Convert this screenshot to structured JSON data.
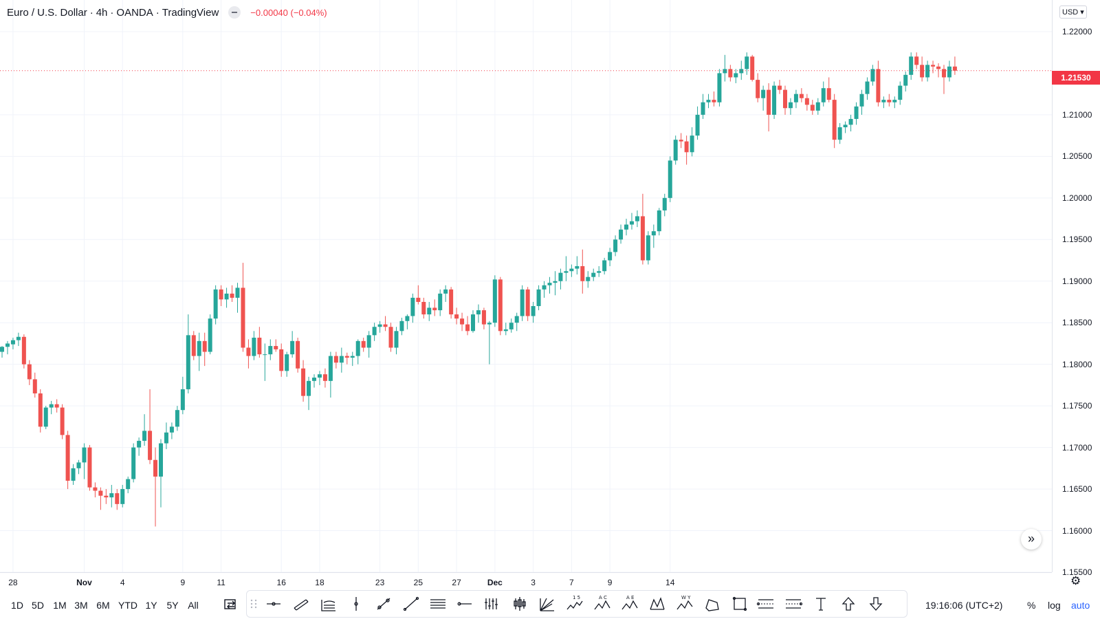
{
  "legend": {
    "symbol_name": "Euro / U.S. Dollar",
    "interval": "4h",
    "exchange": "OANDA",
    "publisher": "TradingView",
    "change": "−0.00040 (−0.04%)"
  },
  "currency_select": "USD",
  "last_price_label": "1.21530",
  "price_scale": {
    "ticks": [
      "1.22000",
      "1.21000",
      "1.20500",
      "1.20000",
      "1.19500",
      "1.19000",
      "1.18500",
      "1.18000",
      "1.17500",
      "1.17000",
      "1.16500",
      "1.16000",
      "1.15500"
    ],
    "tick_values": [
      1.22,
      1.21,
      1.205,
      1.2,
      1.195,
      1.19,
      1.185,
      1.18,
      1.175,
      1.17,
      1.165,
      1.16,
      1.155
    ]
  },
  "time_scale": {
    "labels": [
      {
        "text": "28",
        "index": 2
      },
      {
        "text": "Nov",
        "index": 15,
        "bold": true
      },
      {
        "text": "4",
        "index": 22
      },
      {
        "text": "9",
        "index": 33
      },
      {
        "text": "11",
        "index": 40
      },
      {
        "text": "16",
        "index": 51
      },
      {
        "text": "18",
        "index": 58
      },
      {
        "text": "23",
        "index": 69
      },
      {
        "text": "25",
        "index": 76
      },
      {
        "text": "27",
        "index": 83
      },
      {
        "text": "Dec",
        "index": 90,
        "bold": true
      },
      {
        "text": "3",
        "index": 97
      },
      {
        "text": "7",
        "index": 104
      },
      {
        "text": "9",
        "index": 111
      },
      {
        "text": "14",
        "index": 122
      }
    ]
  },
  "chart_data": {
    "type": "candlestick",
    "symbol": "Euro / U.S. Dollar",
    "interval": "4h",
    "ylim": [
      1.155,
      1.2238
    ],
    "grid": true,
    "up_color": "#26a69a",
    "down_color": "#ef5350",
    "ohlc": [
      [
        1.1815,
        1.1822,
        1.1808,
        1.1821
      ],
      [
        1.1821,
        1.1828,
        1.1812,
        1.1825
      ],
      [
        1.1824,
        1.1832,
        1.1818,
        1.1829
      ],
      [
        1.1829,
        1.1838,
        1.1822,
        1.1833
      ],
      [
        1.1833,
        1.1836,
        1.1795,
        1.18
      ],
      [
        1.18,
        1.1805,
        1.1775,
        1.1782
      ],
      [
        1.1782,
        1.179,
        1.176,
        1.1765
      ],
      [
        1.1765,
        1.177,
        1.1718,
        1.1725
      ],
      [
        1.1725,
        1.175,
        1.1722,
        1.1748
      ],
      [
        1.1748,
        1.1756,
        1.174,
        1.1752
      ],
      [
        1.1752,
        1.1758,
        1.1742,
        1.1748
      ],
      [
        1.1748,
        1.1752,
        1.171,
        1.1715
      ],
      [
        1.1715,
        1.172,
        1.165,
        1.166
      ],
      [
        1.166,
        1.168,
        1.1655,
        1.1675
      ],
      [
        1.1675,
        1.1685,
        1.1668,
        1.1682
      ],
      [
        1.1682,
        1.1705,
        1.1662,
        1.17
      ],
      [
        1.17,
        1.1703,
        1.1648,
        1.1652
      ],
      [
        1.1652,
        1.1658,
        1.164,
        1.1648
      ],
      [
        1.1648,
        1.1652,
        1.1625,
        1.1642
      ],
      [
        1.1642,
        1.165,
        1.1632,
        1.164
      ],
      [
        1.164,
        1.1655,
        1.1628,
        1.1645
      ],
      [
        1.1645,
        1.165,
        1.1625,
        1.1632
      ],
      [
        1.1632,
        1.1655,
        1.1628,
        1.165
      ],
      [
        1.165,
        1.1665,
        1.1645,
        1.1662
      ],
      [
        1.1662,
        1.1705,
        1.1658,
        1.17
      ],
      [
        1.17,
        1.1712,
        1.169,
        1.1708
      ],
      [
        1.1708,
        1.174,
        1.1702,
        1.172
      ],
      [
        1.172,
        1.177,
        1.168,
        1.1685
      ],
      [
        1.1685,
        1.17,
        1.1605,
        1.1665
      ],
      [
        1.1665,
        1.171,
        1.1628,
        1.1705
      ],
      [
        1.1705,
        1.173,
        1.1698,
        1.1718
      ],
      [
        1.1718,
        1.173,
        1.171,
        1.1725
      ],
      [
        1.1725,
        1.175,
        1.172,
        1.1745
      ],
      [
        1.1745,
        1.1785,
        1.174,
        1.177
      ],
      [
        1.177,
        1.186,
        1.1765,
        1.1835
      ],
      [
        1.1835,
        1.184,
        1.1805,
        1.181
      ],
      [
        1.181,
        1.1838,
        1.1792,
        1.1828
      ],
      [
        1.1828,
        1.1838,
        1.1798,
        1.1815
      ],
      [
        1.1815,
        1.186,
        1.1812,
        1.1855
      ],
      [
        1.1855,
        1.1895,
        1.1848,
        1.189
      ],
      [
        1.189,
        1.1895,
        1.187,
        1.1878
      ],
      [
        1.1878,
        1.1892,
        1.1868,
        1.1885
      ],
      [
        1.1885,
        1.1895,
        1.1875,
        1.188
      ],
      [
        1.188,
        1.1898,
        1.1862,
        1.1892
      ],
      [
        1.1892,
        1.1922,
        1.1815,
        1.182
      ],
      [
        1.182,
        1.183,
        1.1795,
        1.181
      ],
      [
        1.181,
        1.184,
        1.1805,
        1.1832
      ],
      [
        1.1832,
        1.1845,
        1.1808,
        1.1812
      ],
      [
        1.1812,
        1.1825,
        1.178,
        1.1812
      ],
      [
        1.1812,
        1.183,
        1.1805,
        1.1822
      ],
      [
        1.1822,
        1.183,
        1.1815,
        1.1818
      ],
      [
        1.1818,
        1.1825,
        1.1785,
        1.1792
      ],
      [
        1.1792,
        1.1815,
        1.1785,
        1.1812
      ],
      [
        1.1812,
        1.184,
        1.1808,
        1.1828
      ],
      [
        1.1828,
        1.1832,
        1.179,
        1.1795
      ],
      [
        1.1795,
        1.1805,
        1.1755,
        1.1762
      ],
      [
        1.1762,
        1.1785,
        1.1745,
        1.178
      ],
      [
        1.178,
        1.1788,
        1.1772,
        1.1784
      ],
      [
        1.1784,
        1.1792,
        1.1775,
        1.1788
      ],
      [
        1.1788,
        1.1795,
        1.1772,
        1.178
      ],
      [
        1.178,
        1.1815,
        1.176,
        1.181
      ],
      [
        1.181,
        1.1815,
        1.1795,
        1.1802
      ],
      [
        1.1802,
        1.182,
        1.179,
        1.181
      ],
      [
        1.181,
        1.1814,
        1.18,
        1.1808
      ],
      [
        1.1808,
        1.1815,
        1.1798,
        1.181
      ],
      [
        1.181,
        1.183,
        1.18,
        1.1828
      ],
      [
        1.1828,
        1.1832,
        1.1815,
        1.182
      ],
      [
        1.182,
        1.184,
        1.1808,
        1.1835
      ],
      [
        1.1835,
        1.185,
        1.1828,
        1.1845
      ],
      [
        1.1845,
        1.1852,
        1.1838,
        1.1848
      ],
      [
        1.1848,
        1.1858,
        1.184,
        1.1845
      ],
      [
        1.1845,
        1.185,
        1.1815,
        1.182
      ],
      [
        1.182,
        1.1845,
        1.1812,
        1.184
      ],
      [
        1.184,
        1.1856,
        1.1835,
        1.1852
      ],
      [
        1.1852,
        1.186,
        1.1842,
        1.1858
      ],
      [
        1.1858,
        1.1885,
        1.185,
        1.188
      ],
      [
        1.188,
        1.1895,
        1.1872,
        1.1875
      ],
      [
        1.1875,
        1.188,
        1.1855,
        1.186
      ],
      [
        1.186,
        1.1875,
        1.1852,
        1.1868
      ],
      [
        1.1868,
        1.1878,
        1.1858,
        1.1865
      ],
      [
        1.1865,
        1.189,
        1.1858,
        1.1885
      ],
      [
        1.1885,
        1.1895,
        1.1875,
        1.189
      ],
      [
        1.189,
        1.1893,
        1.1855,
        1.186
      ],
      [
        1.186,
        1.1868,
        1.1848,
        1.1855
      ],
      [
        1.1855,
        1.1862,
        1.184,
        1.1848
      ],
      [
        1.1848,
        1.1858,
        1.1835,
        1.184
      ],
      [
        1.184,
        1.1865,
        1.1838,
        1.186
      ],
      [
        1.186,
        1.1872,
        1.185,
        1.1865
      ],
      [
        1.1865,
        1.1868,
        1.1842,
        1.1848
      ],
      [
        1.1848,
        1.1852,
        1.18,
        1.185
      ],
      [
        1.185,
        1.1907,
        1.1845,
        1.1902
      ],
      [
        1.1902,
        1.1905,
        1.1835,
        1.184
      ],
      [
        1.184,
        1.185,
        1.1835,
        1.1842
      ],
      [
        1.1842,
        1.1855,
        1.1838,
        1.185
      ],
      [
        1.185,
        1.1862,
        1.184,
        1.1858
      ],
      [
        1.1858,
        1.1895,
        1.1852,
        1.189
      ],
      [
        1.189,
        1.1893,
        1.1852,
        1.1858
      ],
      [
        1.1858,
        1.1875,
        1.185,
        1.187
      ],
      [
        1.187,
        1.1895,
        1.1865,
        1.189
      ],
      [
        1.189,
        1.19,
        1.188,
        1.1895
      ],
      [
        1.1895,
        1.1905,
        1.1885,
        1.1898
      ],
      [
        1.1898,
        1.1912,
        1.1883,
        1.19
      ],
      [
        1.19,
        1.1915,
        1.189,
        1.191
      ],
      [
        1.191,
        1.193,
        1.19,
        1.1912
      ],
      [
        1.1912,
        1.192,
        1.1905,
        1.1915
      ],
      [
        1.1915,
        1.193,
        1.1908,
        1.1918
      ],
      [
        1.1918,
        1.1938,
        1.1885,
        1.19
      ],
      [
        1.19,
        1.1912,
        1.1892,
        1.1905
      ],
      [
        1.1905,
        1.1915,
        1.19,
        1.191
      ],
      [
        1.191,
        1.1918,
        1.1905,
        1.1912
      ],
      [
        1.1912,
        1.1928,
        1.1908,
        1.1925
      ],
      [
        1.1925,
        1.194,
        1.1918,
        1.1935
      ],
      [
        1.1935,
        1.1955,
        1.193,
        1.195
      ],
      [
        1.195,
        1.1968,
        1.1945,
        1.1962
      ],
      [
        1.1962,
        1.1975,
        1.1955,
        1.1968
      ],
      [
        1.1968,
        1.1982,
        1.1962,
        1.1972
      ],
      [
        1.1972,
        1.1985,
        1.1965,
        1.1978
      ],
      [
        1.1978,
        1.2005,
        1.192,
        1.1925
      ],
      [
        1.1925,
        1.196,
        1.192,
        1.1955
      ],
      [
        1.1955,
        1.1968,
        1.194,
        1.196
      ],
      [
        1.196,
        1.1988,
        1.1955,
        1.1985
      ],
      [
        1.1985,
        1.2005,
        1.1978,
        1.2
      ],
      [
        1.2,
        1.205,
        1.1995,
        1.2045
      ],
      [
        1.2045,
        1.2075,
        1.204,
        1.207
      ],
      [
        1.207,
        1.2078,
        1.206,
        1.2068
      ],
      [
        1.2068,
        1.2075,
        1.204,
        1.2055
      ],
      [
        1.2055,
        1.2085,
        1.205,
        1.2075
      ],
      [
        1.2075,
        1.211,
        1.207,
        1.21
      ],
      [
        1.21,
        1.2125,
        1.2095,
        1.2115
      ],
      [
        1.2115,
        1.2125,
        1.2108,
        1.2118
      ],
      [
        1.2118,
        1.2128,
        1.211,
        1.2115
      ],
      [
        1.2115,
        1.2155,
        1.211,
        1.215
      ],
      [
        1.215,
        1.2172,
        1.214,
        1.2155
      ],
      [
        1.2155,
        1.216,
        1.214,
        1.2145
      ],
      [
        1.2145,
        1.2155,
        1.2138,
        1.215
      ],
      [
        1.215,
        1.2165,
        1.2142,
        1.2155
      ],
      [
        1.2155,
        1.2175,
        1.2148,
        1.217
      ],
      [
        1.217,
        1.2172,
        1.214,
        1.2142
      ],
      [
        1.2142,
        1.215,
        1.2115,
        1.212
      ],
      [
        1.212,
        1.2135,
        1.2105,
        1.213
      ],
      [
        1.213,
        1.2138,
        1.208,
        1.21
      ],
      [
        1.21,
        1.214,
        1.2095,
        1.2135
      ],
      [
        1.2135,
        1.2142,
        1.2125,
        1.213
      ],
      [
        1.213,
        1.2135,
        1.21,
        1.2108
      ],
      [
        1.2108,
        1.212,
        1.21,
        1.2115
      ],
      [
        1.2115,
        1.213,
        1.2108,
        1.2125
      ],
      [
        1.2125,
        1.2132,
        1.2115,
        1.212
      ],
      [
        1.212,
        1.2125,
        1.2105,
        1.2112
      ],
      [
        1.2112,
        1.2118,
        1.21,
        1.2105
      ],
      [
        1.2105,
        1.212,
        1.21,
        1.2115
      ],
      [
        1.2115,
        1.214,
        1.211,
        1.2132
      ],
      [
        1.2132,
        1.2145,
        1.2115,
        1.2118
      ],
      [
        1.2118,
        1.2125,
        1.206,
        1.207
      ],
      [
        1.207,
        1.209,
        1.2065,
        1.2085
      ],
      [
        1.2085,
        1.2092,
        1.2078,
        1.2088
      ],
      [
        1.2088,
        1.21,
        1.208,
        1.2095
      ],
      [
        1.2095,
        1.2115,
        1.2088,
        1.211
      ],
      [
        1.211,
        1.213,
        1.21,
        1.2125
      ],
      [
        1.2125,
        1.2145,
        1.2118,
        1.214
      ],
      [
        1.214,
        1.216,
        1.2135,
        1.2155
      ],
      [
        1.2155,
        1.2165,
        1.211,
        1.2115
      ],
      [
        1.2115,
        1.2122,
        1.2108,
        1.2118
      ],
      [
        1.2118,
        1.2125,
        1.211,
        1.2115
      ],
      [
        1.2115,
        1.2122,
        1.2108,
        1.2118
      ],
      [
        1.2118,
        1.214,
        1.2112,
        1.2135
      ],
      [
        1.2135,
        1.2152,
        1.2128,
        1.2148
      ],
      [
        1.2148,
        1.2175,
        1.2142,
        1.217
      ],
      [
        1.217,
        1.2175,
        1.2155,
        1.216
      ],
      [
        1.216,
        1.217,
        1.214,
        1.2145
      ],
      [
        1.2145,
        1.2165,
        1.214,
        1.216
      ],
      [
        1.216,
        1.2165,
        1.215,
        1.2158
      ],
      [
        1.2158,
        1.2162,
        1.2145,
        1.2155
      ],
      [
        1.2155,
        1.216,
        1.2125,
        1.2145
      ],
      [
        1.2145,
        1.2165,
        1.214,
        1.2158
      ],
      [
        1.2158,
        1.217,
        1.2148,
        1.2153
      ]
    ]
  },
  "bottom_bar": {
    "ranges": [
      "1D",
      "5D",
      "1M",
      "3M",
      "6M",
      "YTD",
      "1Y",
      "5Y",
      "All"
    ],
    "compare_icon": "compare-icon",
    "clock": "19:16:06 (UTC+2)",
    "percent_label": "%",
    "log_label": "log",
    "auto_label": "auto",
    "auto_color": "#2962ff"
  },
  "drawing_tools": [
    "ray-tool",
    "parallel-channel-tool",
    "pitchfork-tool",
    "vertical-line-tool",
    "trend-angle-tool",
    "trend-line-tool",
    "fib-retracement-tool",
    "horizontal-line-tool",
    "fib-time-zones-tool",
    "candle-pattern-tool",
    "gann-fan-tool",
    "elliott-wave-tool",
    "abcd-pattern-tool",
    "xabcd-pattern-tool",
    "head-shoulders-tool",
    "wxy-wave-tool",
    "polyline-tool",
    "rectangle-tool",
    "long-position-tool",
    "short-position-tool",
    "text-tool",
    "arrow-up-tool",
    "arrow-down-tool"
  ],
  "icons": {
    "settings": "gear-icon",
    "scroll_to_realtime": "double-chevron-right-icon",
    "drag_handle": "drag-handle-icon"
  }
}
